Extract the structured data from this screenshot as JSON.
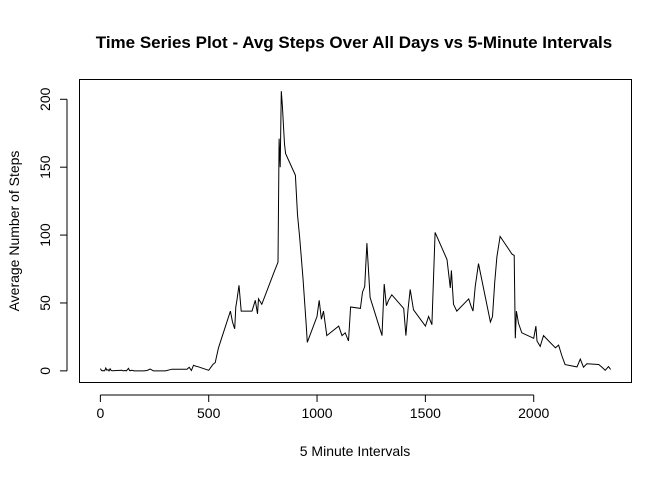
{
  "chart_data": {
    "type": "line",
    "title": "Time Series Plot - Avg Steps Over All Days vs 5-Minute Intervals",
    "xlabel": "5 Minute Intervals",
    "ylabel": "Average Number of Steps",
    "xlim": [
      -94,
      2449
    ],
    "ylim": [
      -8.2,
      214.2
    ],
    "xticks": [
      0,
      500,
      1000,
      1500,
      2000
    ],
    "yticks": [
      0,
      50,
      100,
      150,
      200
    ],
    "grid": false,
    "legend": "none",
    "line_color": "#000000",
    "series": [
      {
        "x": [
          0,
          5,
          10,
          15,
          20,
          25,
          30,
          35,
          40,
          45,
          50,
          55,
          100,
          105,
          110,
          115,
          120,
          125,
          130,
          135,
          140,
          145,
          150,
          155,
          200,
          215,
          230,
          245,
          300,
          330,
          400,
          410,
          420,
          430,
          440,
          450,
          500,
          520,
          530,
          545,
          600,
          610,
          620,
          625,
          630,
          640,
          650,
          700,
          715,
          725,
          730,
          745,
          800,
          820,
          825,
          830,
          835,
          840,
          845,
          850,
          855,
          900,
          910,
          920,
          935,
          950,
          955,
          1000,
          1010,
          1020,
          1030,
          1045,
          1100,
          1115,
          1130,
          1145,
          1155,
          1200,
          1210,
          1220,
          1230,
          1245,
          1300,
          1310,
          1320,
          1330,
          1345,
          1400,
          1410,
          1420,
          1430,
          1445,
          1500,
          1515,
          1530,
          1545,
          1600,
          1615,
          1620,
          1630,
          1645,
          1700,
          1710,
          1720,
          1730,
          1745,
          1800,
          1810,
          1820,
          1830,
          1845,
          1900,
          1910,
          1915,
          1920,
          1930,
          1945,
          2000,
          2010,
          2015,
          2030,
          2045,
          2100,
          2115,
          2130,
          2145,
          2200,
          2215,
          2230,
          2245,
          2300,
          2315,
          2330,
          2345,
          2355
        ],
        "y": [
          1.7,
          0.3,
          0.1,
          0.2,
          0.1,
          2.1,
          0.5,
          0.9,
          0,
          1.5,
          0.3,
          0.1,
          0.4,
          0,
          0.2,
          0.3,
          0,
          1.1,
          1.8,
          0.2,
          0.2,
          0.4,
          0.3,
          0,
          0,
          0.3,
          1.3,
          0,
          0,
          1.2,
          1.2,
          2.6,
          0.3,
          4.1,
          3.5,
          3.1,
          0.4,
          4.8,
          6.1,
          17,
          44,
          36,
          31,
          47,
          52,
          63,
          44,
          44,
          52,
          42,
          53,
          49,
          72,
          80,
          171,
          150,
          206,
          195,
          180,
          167,
          160,
          144,
          115,
          98,
          68,
          34,
          21,
          40,
          52,
          38,
          44,
          26,
          33,
          26,
          28,
          22,
          47,
          46,
          58,
          62,
          94,
          54,
          26,
          64,
          48,
          52,
          56,
          46,
          26,
          45,
          60,
          45,
          33,
          40,
          34,
          102,
          82,
          61,
          74,
          49,
          44,
          53,
          48,
          44,
          62,
          79,
          36,
          40,
          65,
          84,
          99,
          86,
          85,
          24,
          44,
          35,
          28,
          24,
          33,
          22,
          18,
          26,
          17,
          19,
          11,
          4.6,
          2.9,
          8.7,
          2.7,
          5.2,
          4.7,
          2.6,
          0.4,
          3.2,
          1.1
        ]
      }
    ]
  }
}
